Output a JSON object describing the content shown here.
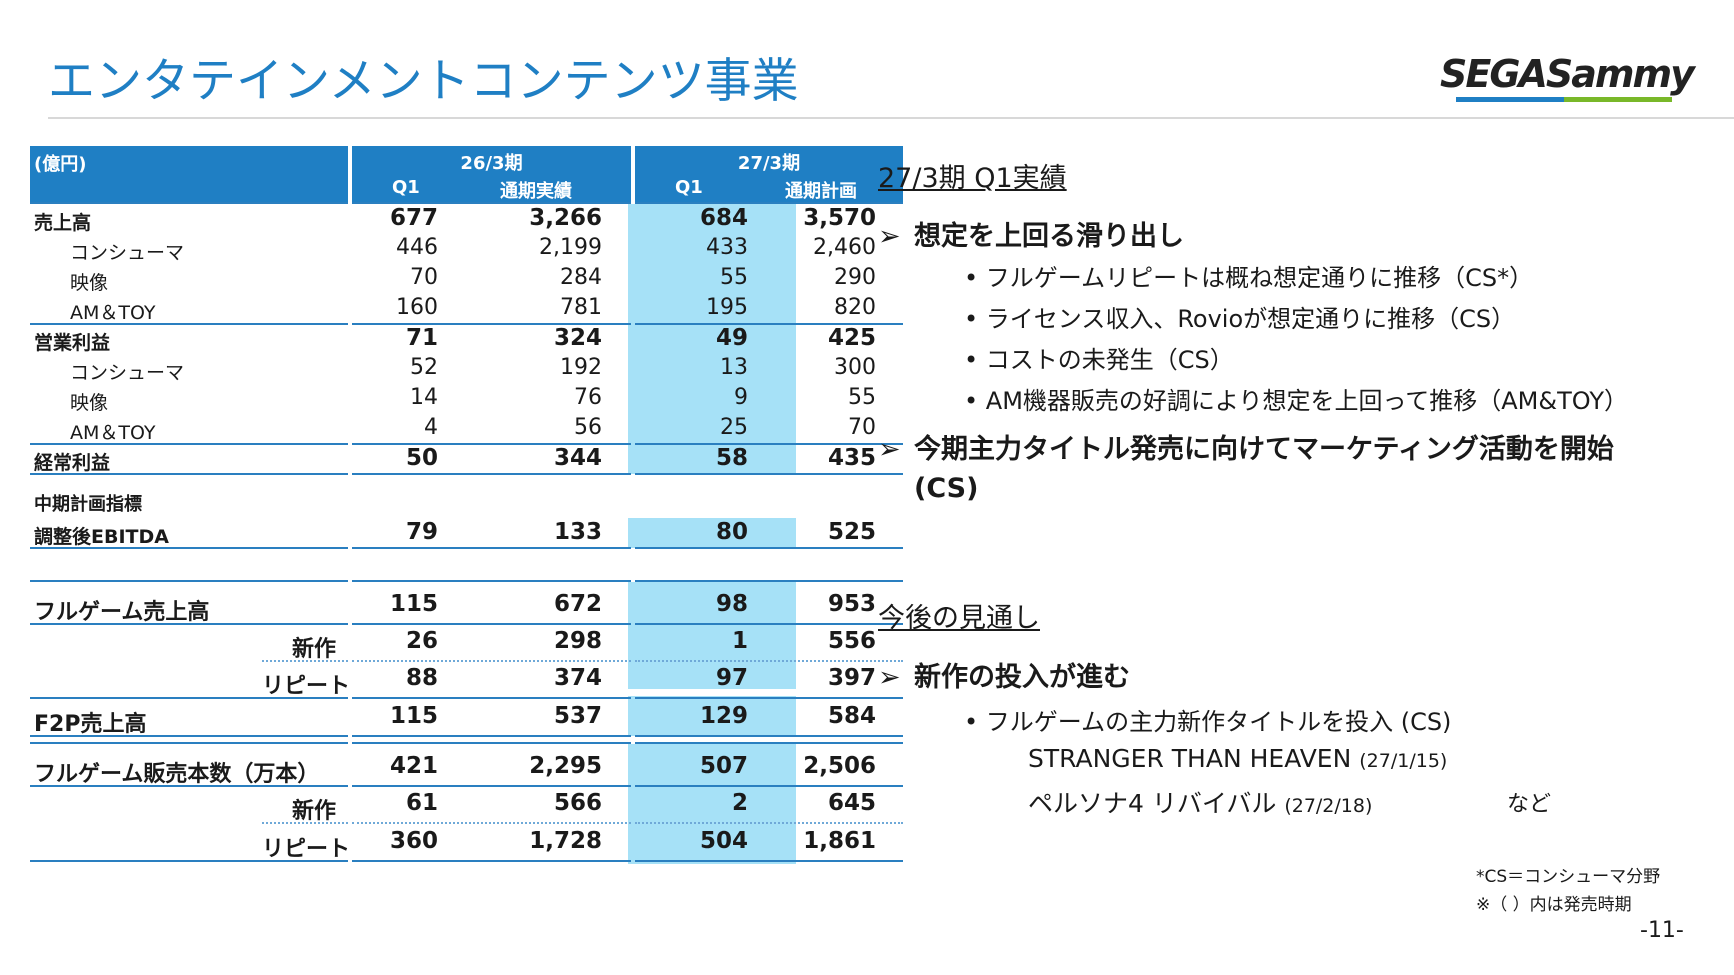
{
  "header": {
    "title": "エンタテインメントコンテンツ事業",
    "logo_text": "SEGASammy",
    "page_number": "-11-"
  },
  "table": {
    "unit": "(億円)",
    "period_a": "26/3期",
    "period_b": "27/3期",
    "col_q1": "Q1",
    "col_full_result": "通期実績",
    "col_full_plan": "通期計画",
    "section_label": "中期計画指標",
    "rows": [
      {
        "label": "売上高",
        "v": [
          "677",
          "3,266",
          "684",
          "3,570"
        ]
      },
      {
        "label": "コンシューマ",
        "v": [
          "446",
          "2,199",
          "433",
          "2,460"
        ]
      },
      {
        "label": "映像",
        "v": [
          "70",
          "284",
          "55",
          "290"
        ]
      },
      {
        "label": "AM＆TOY",
        "v": [
          "160",
          "781",
          "195",
          "820"
        ]
      },
      {
        "label": "営業利益",
        "v": [
          "71",
          "324",
          "49",
          "425"
        ]
      },
      {
        "label": "コンシューマ",
        "v": [
          "52",
          "192",
          "13",
          "300"
        ]
      },
      {
        "label": "映像",
        "v": [
          "14",
          "76",
          "9",
          "55"
        ]
      },
      {
        "label": "AM＆TOY",
        "v": [
          "4",
          "56",
          "25",
          "70"
        ]
      },
      {
        "label": "経常利益",
        "v": [
          "50",
          "344",
          "58",
          "435"
        ]
      },
      {
        "label": "調整後EBITDA",
        "v": [
          "79",
          "133",
          "80",
          "525"
        ]
      },
      {
        "label": "フルゲーム売上高",
        "v": [
          "115",
          "672",
          "98",
          "953"
        ]
      },
      {
        "label": "新作",
        "v": [
          "26",
          "298",
          "1",
          "556"
        ]
      },
      {
        "label": "リピート",
        "v": [
          "88",
          "374",
          "97",
          "397"
        ]
      },
      {
        "label": "F2P売上高",
        "v": [
          "115",
          "537",
          "129",
          "584"
        ]
      },
      {
        "label": "フルゲーム販売本数（万本）",
        "v": [
          "421",
          "2,295",
          "507",
          "2,506"
        ]
      },
      {
        "label": "新作",
        "v": [
          "61",
          "566",
          "2",
          "645"
        ]
      },
      {
        "label": "リピート",
        "v": [
          "360",
          "1,728",
          "504",
          "1,861"
        ]
      }
    ]
  },
  "right": {
    "heading1": "27/3期 Q1実績",
    "b1": "想定を上回る滑り出し",
    "b1_items": [
      "フルゲームリピートは概ね想定通りに推移（CS*）",
      "ライセンス収入、Rovioが想定通りに推移（CS）",
      "コストの未発生（CS）",
      "AM機器販売の好調により想定を上回って推移（AM&TOY）"
    ],
    "b2_line1": "今期主力タイトル発売に向けてマーケティング活動を開始",
    "b2_line2": "(CS)",
    "heading2": "今後の見通し",
    "b3": "新作の投入が進む",
    "b3_item": "フルゲームの主力新作タイトルを投入 (CS)",
    "title1": "STRANGER THAN HEAVEN",
    "title1_date": "(27/1/15)",
    "title2": "ペルソナ4 リバイバル",
    "title2_date": "(27/2/18)",
    "etc": "など",
    "note1": "*CS＝コンシューマ分野",
    "note2": "※（ ）内は発売時期"
  },
  "colors": {
    "accent": "#1f7fc4",
    "highlight": "#a6e1f7",
    "logo_green": "#79b829"
  }
}
